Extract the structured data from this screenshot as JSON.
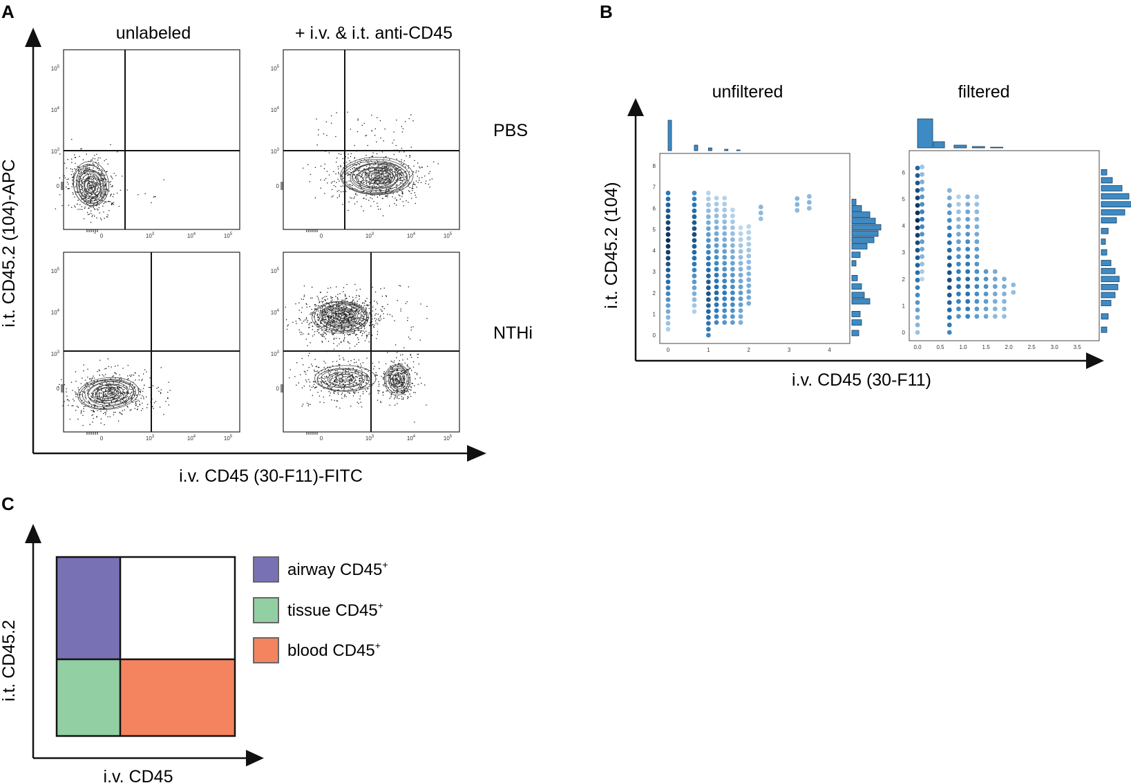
{
  "panelA": {
    "letter": "A",
    "col_titles": [
      "unlabeled",
      "+ i.v. & i.t. anti-CD45"
    ],
    "row_labels": [
      "PBS",
      "NTHi"
    ],
    "x_axis_title": "i.v. CD45 (30-F11)-FITC",
    "y_axis_title": "i.t. CD45.2 (104)-APC",
    "tick_labels": [
      "0",
      "10",
      "10",
      "10"
    ],
    "tick_exponents": [
      "3",
      "4",
      "5"
    ]
  },
  "panelB": {
    "letter": "B",
    "col_titles": [
      "unfiltered",
      "filtered"
    ],
    "x_axis_title": "i.v. CD45 (30-F11)",
    "y_axis_title": "i.t. CD45.2 (104)",
    "unfiltered_x_ticks": [
      "0",
      "1",
      "2",
      "3",
      "4"
    ],
    "unfiltered_y_ticks": [
      "0",
      "1",
      "2",
      "3",
      "4",
      "5",
      "6",
      "7",
      "8"
    ],
    "filtered_x_ticks": [
      "0.0",
      "0.5",
      "1.0",
      "1.5",
      "2.0",
      "2.5",
      "3.0",
      "3.5"
    ],
    "filtered_y_ticks": [
      "0",
      "1",
      "2",
      "3",
      "4",
      "5",
      "6"
    ]
  },
  "panelC": {
    "letter": "C",
    "x_axis_title": "i.v. CD45",
    "y_axis_title": "i.t. CD45.2",
    "legend": [
      {
        "label": "airway CD45",
        "sup": "+",
        "color": "#7872b4"
      },
      {
        "label": "tissue CD45",
        "sup": "+",
        "color": "#92cfa3"
      },
      {
        "label": "blood CD45",
        "sup": "+",
        "color": "#f4845f"
      }
    ]
  },
  "colors": {
    "hex_dark": "#0d2b4e",
    "hex_mid": "#2b7bbb",
    "hex_light": "#c6dcef",
    "hist": "#3d8bc4"
  }
}
